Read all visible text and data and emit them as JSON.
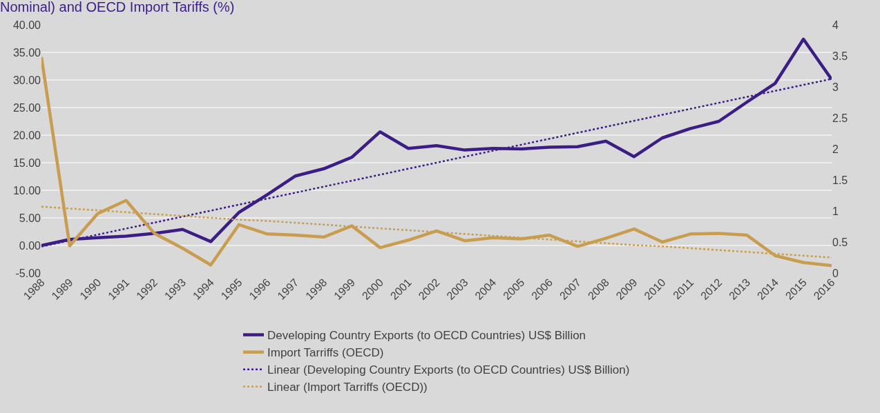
{
  "chart_data": {
    "type": "line",
    "title": "Nominal) and OECD Import Tariffs (%)",
    "categories": [
      "1988",
      "1989",
      "1990",
      "1991",
      "1992",
      "1993",
      "1994",
      "1995",
      "1996",
      "1997",
      "1998",
      "1999",
      "2000",
      "2001",
      "2002",
      "2003",
      "2004",
      "2005",
      "2006",
      "2007",
      "2008",
      "2009",
      "2010",
      "2011",
      "2012",
      "2013",
      "2014",
      "2015",
      "2016"
    ],
    "series": [
      {
        "name": "Developing Country Exports (to OECD Countries) US$ Billion",
        "color": "#3b1d85",
        "values": [
          0.0,
          1.1,
          1.4,
          1.7,
          2.2,
          2.9,
          0.7,
          6.0,
          9.2,
          12.6,
          13.9,
          16.0,
          20.6,
          17.6,
          18.1,
          17.3,
          17.6,
          17.5,
          17.8,
          17.9,
          18.9,
          16.1,
          19.5,
          21.2,
          22.5,
          26.0,
          29.4,
          37.4,
          30.1
        ]
      },
      {
        "name": "Import Tarriffs (OECD)",
        "color": "#c89d4f",
        "axis": "y2",
        "values": [
          3.48,
          0.44,
          0.96,
          1.17,
          0.64,
          0.4,
          0.13,
          0.78,
          0.63,
          0.61,
          0.58,
          0.76,
          0.41,
          0.53,
          0.68,
          0.52,
          0.57,
          0.55,
          0.61,
          0.43,
          0.56,
          0.71,
          0.5,
          0.63,
          0.64,
          0.61,
          0.28,
          0.17,
          0.12
        ]
      },
      {
        "name": "Linear (Developing Country Exports (to OECD Countries) US$ Billion)",
        "color": "#3b1d85",
        "line_style": "dotted",
        "values": [
          -0.2,
          0.89,
          1.97,
          3.06,
          4.14,
          5.23,
          6.31,
          7.4,
          8.49,
          9.57,
          10.66,
          11.74,
          12.83,
          13.91,
          15.0,
          16.09,
          17.17,
          18.26,
          19.34,
          20.43,
          21.51,
          22.6,
          23.69,
          24.77,
          25.86,
          26.94,
          28.03,
          29.11,
          30.2
        ]
      },
      {
        "name": "Linear (Import Tarriffs (OECD))",
        "color": "#c89d4f",
        "line_style": "dotted",
        "axis": "y2",
        "values": [
          1.07,
          1.04,
          1.01,
          0.98,
          0.95,
          0.92,
          0.89,
          0.86,
          0.84,
          0.81,
          0.78,
          0.75,
          0.72,
          0.69,
          0.66,
          0.63,
          0.6,
          0.57,
          0.54,
          0.51,
          0.48,
          0.45,
          0.43,
          0.4,
          0.37,
          0.34,
          0.31,
          0.28,
          0.25
        ]
      }
    ],
    "ylim": [
      -5,
      40
    ],
    "yticks": [
      {
        "value": -5,
        "label": "-5.00"
      },
      {
        "value": 0,
        "label": "0.00"
      },
      {
        "value": 5,
        "label": "5.00"
      },
      {
        "value": 10,
        "label": "10.00"
      },
      {
        "value": 15,
        "label": "15.00"
      },
      {
        "value": 20,
        "label": "20.00"
      },
      {
        "value": 25,
        "label": "25.00"
      },
      {
        "value": 30,
        "label": "30.00"
      },
      {
        "value": 35,
        "label": "35.00"
      },
      {
        "value": 40,
        "label": "40.00"
      }
    ],
    "y2lim": [
      0,
      4
    ],
    "y2ticks": [
      0,
      0.5,
      1,
      1.5,
      2,
      2.5,
      3,
      3.5,
      4
    ],
    "grid": "y",
    "legend": "bottom",
    "line_style": "solid",
    "marker": "none"
  }
}
